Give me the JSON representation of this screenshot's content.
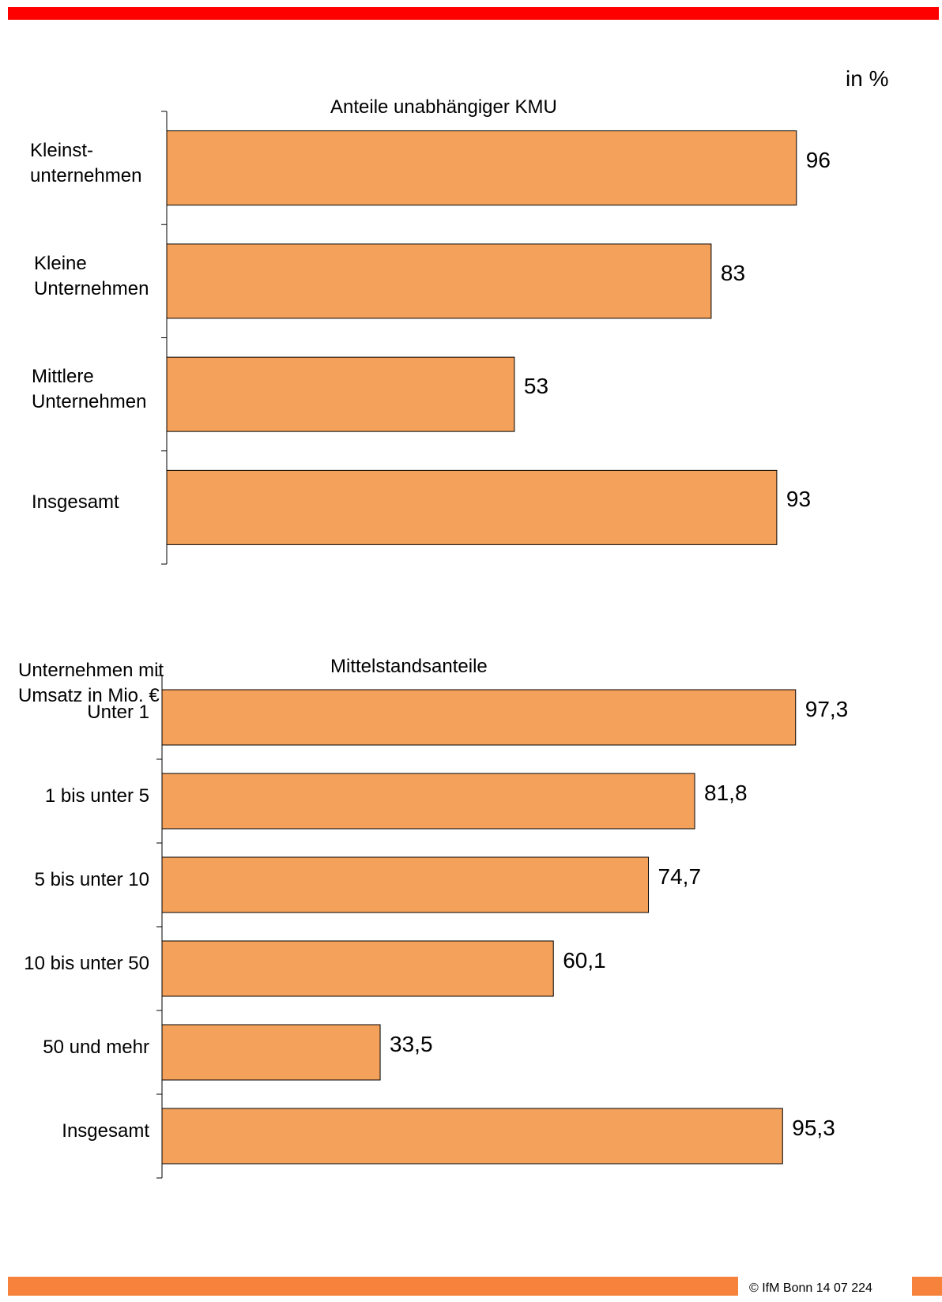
{
  "unit_label": "in %",
  "footer_text": "© IfM Bonn  14 07 224",
  "colors": {
    "bar": "#f4a25b",
    "top_bar": "#ff0000",
    "bottom_bar": "#f7823c"
  },
  "chart_data": [
    {
      "type": "bar",
      "orientation": "horizontal",
      "title": "Anteile unabhängiger KMU",
      "categories": [
        "Kleinst-\nunternehmen",
        "Kleine\nUnternehmen",
        "Mittlere\nUnternehmen",
        "Insgesamt"
      ],
      "values": [
        96,
        83,
        53,
        93
      ],
      "value_labels": [
        "96",
        "83",
        "53",
        "93"
      ],
      "xlim": [
        0,
        100
      ]
    },
    {
      "type": "bar",
      "orientation": "horizontal",
      "title": "Mittelstandsanteile",
      "ylabel": "Unternehmen mit\nUmsatz in Mio. €",
      "categories": [
        "Unter 1",
        "1 bis unter 5",
        "5 bis unter 10",
        "10 bis unter 50",
        "50 und mehr",
        "Insgesamt"
      ],
      "values": [
        97.3,
        81.8,
        74.7,
        60.1,
        33.5,
        95.3
      ],
      "value_labels": [
        "97,3",
        "81,8",
        "74,7",
        "60,1",
        "33,5",
        "95,3"
      ],
      "xlim": [
        0,
        100
      ]
    }
  ]
}
